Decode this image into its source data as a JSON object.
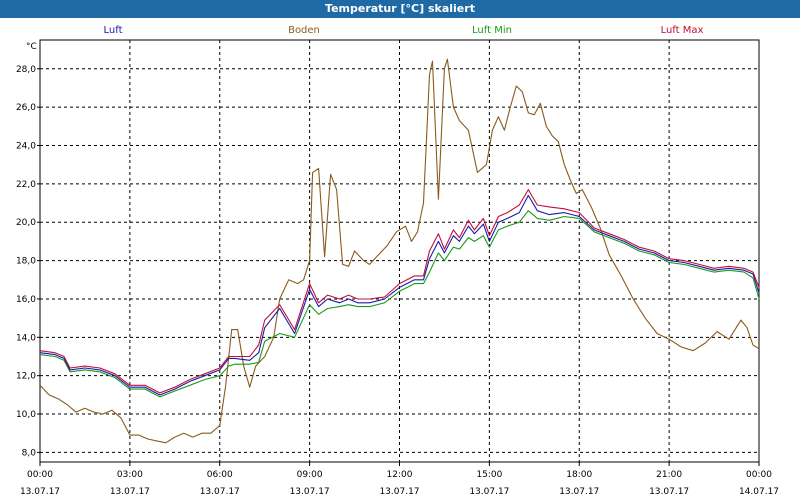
{
  "window": {
    "title": "Temperatur [°C] skaliert"
  },
  "chart_data": {
    "type": "line",
    "title": "Temperatur [°C] skaliert",
    "ylabel": "°C",
    "ylim": [
      7.5,
      29.5
    ],
    "yticks": [
      "8,0",
      "10,0",
      "12,0",
      "14,0",
      "16,0",
      "18,0",
      "20,0",
      "22,0",
      "24,0",
      "26,0",
      "28,0"
    ],
    "ytick_values": [
      8,
      10,
      12,
      14,
      16,
      18,
      20,
      22,
      24,
      26,
      28
    ],
    "xlim": [
      0,
      24
    ],
    "xtick_hours": [
      0,
      3,
      6,
      9,
      12,
      15,
      18,
      21,
      24
    ],
    "xtick_times": [
      "00:00",
      "03:00",
      "06:00",
      "09:00",
      "12:00",
      "15:00",
      "18:00",
      "21:00",
      "00:00"
    ],
    "xtick_dates": [
      "13.07.17",
      "13.07.17",
      "13.07.17",
      "13.07.17",
      "13.07.17",
      "13.07.17",
      "13.07.17",
      "13.07.17",
      "14.07.17"
    ],
    "grid": true,
    "series": [
      {
        "name": "Luft",
        "color": "#1a1aa8",
        "x": [
          0,
          0.5,
          0.8,
          1,
          1.5,
          2,
          2.5,
          3,
          3.5,
          4,
          4.5,
          5,
          5.5,
          6,
          6.3,
          6.5,
          7,
          7.3,
          7.5,
          8,
          8.5,
          9,
          9.3,
          9.6,
          10,
          10.3,
          10.6,
          11,
          11.5,
          12,
          12.5,
          12.8,
          13,
          13.3,
          13.5,
          13.8,
          14,
          14.3,
          14.5,
          14.8,
          15,
          15.3,
          15.6,
          16,
          16.3,
          16.6,
          17,
          17.5,
          18,
          18.5,
          19,
          19.5,
          20,
          20.5,
          21,
          21.5,
          22,
          22.5,
          23,
          23.5,
          23.8,
          24
        ],
        "y": [
          13.2,
          13.1,
          12.9,
          12.3,
          12.4,
          12.3,
          12.0,
          11.4,
          11.4,
          11.0,
          11.3,
          11.7,
          12.0,
          12.3,
          12.9,
          12.9,
          12.8,
          13.2,
          14.5,
          15.5,
          14.2,
          16.5,
          15.6,
          16.0,
          15.8,
          16.0,
          15.8,
          15.8,
          16.0,
          16.6,
          17.0,
          17.0,
          18.1,
          19.0,
          18.4,
          19.3,
          19.0,
          19.8,
          19.4,
          19.9,
          19.0,
          20.0,
          20.2,
          20.5,
          21.4,
          20.6,
          20.4,
          20.5,
          20.3,
          19.6,
          19.3,
          19.0,
          18.6,
          18.4,
          18.0,
          17.9,
          17.7,
          17.5,
          17.6,
          17.5,
          17.3,
          16.3
        ]
      },
      {
        "name": "Boden",
        "color": "#8b5a1e",
        "x": [
          0,
          0.3,
          0.6,
          0.9,
          1.2,
          1.5,
          1.8,
          2.1,
          2.4,
          2.7,
          3,
          3.3,
          3.6,
          3.9,
          4.2,
          4.5,
          4.8,
          5.1,
          5.4,
          5.7,
          6,
          6.2,
          6.4,
          6.6,
          6.8,
          7,
          7.2,
          7.5,
          7.8,
          8,
          8.3,
          8.6,
          8.8,
          9,
          9.1,
          9.3,
          9.5,
          9.7,
          9.9,
          10.1,
          10.3,
          10.5,
          10.8,
          11,
          11.3,
          11.6,
          11.9,
          12.2,
          12.4,
          12.6,
          12.8,
          13,
          13.1,
          13.3,
          13.5,
          13.6,
          13.8,
          14,
          14.3,
          14.6,
          14.9,
          15.1,
          15.3,
          15.5,
          15.7,
          15.9,
          16.1,
          16.3,
          16.5,
          16.7,
          16.9,
          17.1,
          17.3,
          17.5,
          17.7,
          17.9,
          18.1,
          18.4,
          18.7,
          19,
          19.4,
          19.8,
          20.2,
          20.6,
          21,
          21.4,
          21.8,
          22.2,
          22.6,
          23,
          23.4,
          23.6,
          23.8,
          24
        ],
        "y": [
          11.5,
          11.0,
          10.8,
          10.5,
          10.1,
          10.3,
          10.1,
          10.0,
          10.2,
          9.8,
          8.9,
          8.9,
          8.7,
          8.6,
          8.5,
          8.8,
          9.0,
          8.8,
          9.0,
          9.0,
          9.4,
          11.5,
          14.4,
          14.4,
          12.5,
          11.4,
          12.5,
          13.0,
          14.0,
          16.0,
          17.0,
          16.8,
          17.0,
          18.0,
          22.6,
          22.8,
          18.2,
          22.5,
          21.7,
          17.8,
          17.7,
          18.5,
          18.0,
          17.8,
          18.3,
          18.8,
          19.5,
          19.8,
          19.0,
          19.5,
          21.0,
          27.7,
          28.4,
          21.2,
          28.0,
          28.5,
          26.0,
          25.3,
          24.8,
          22.6,
          23.0,
          24.8,
          25.5,
          24.8,
          26.0,
          27.1,
          26.8,
          25.7,
          25.6,
          26.2,
          25.0,
          24.5,
          24.2,
          23.0,
          22.2,
          21.5,
          21.7,
          20.8,
          19.7,
          18.3,
          17.2,
          16.0,
          15.0,
          14.2,
          13.9,
          13.5,
          13.3,
          13.7,
          14.3,
          13.9,
          14.9,
          14.5,
          13.6,
          13.4
        ]
      },
      {
        "name": "Luft Min",
        "color": "#1a9a1a",
        "x": [
          0,
          0.5,
          0.8,
          1,
          1.5,
          2,
          2.5,
          3,
          3.5,
          4,
          4.5,
          5,
          5.5,
          6,
          6.3,
          6.5,
          7,
          7.3,
          7.5,
          8,
          8.5,
          9,
          9.3,
          9.6,
          10,
          10.3,
          10.6,
          11,
          11.5,
          12,
          12.5,
          12.8,
          13,
          13.3,
          13.5,
          13.8,
          14,
          14.3,
          14.5,
          14.8,
          15,
          15.3,
          15.6,
          16,
          16.3,
          16.6,
          17,
          17.5,
          18,
          18.5,
          19,
          19.5,
          20,
          20.5,
          21,
          21.5,
          22,
          22.5,
          23,
          23.5,
          23.8,
          24
        ],
        "y": [
          13.1,
          13.0,
          12.8,
          12.2,
          12.3,
          12.2,
          11.9,
          11.3,
          11.3,
          10.9,
          11.2,
          11.5,
          11.8,
          12.0,
          12.5,
          12.6,
          12.6,
          12.7,
          13.8,
          14.2,
          14.0,
          15.7,
          15.2,
          15.5,
          15.6,
          15.7,
          15.6,
          15.6,
          15.8,
          16.4,
          16.8,
          16.8,
          17.4,
          18.4,
          18.0,
          18.7,
          18.6,
          19.2,
          19.0,
          19.3,
          18.7,
          19.6,
          19.8,
          20.0,
          20.6,
          20.2,
          20.1,
          20.3,
          20.2,
          19.5,
          19.2,
          18.9,
          18.5,
          18.3,
          17.9,
          17.8,
          17.6,
          17.4,
          17.5,
          17.4,
          17.1,
          16.0
        ]
      },
      {
        "name": "Luft Max",
        "color": "#c0103a",
        "x": [
          0,
          0.5,
          0.8,
          1,
          1.5,
          2,
          2.5,
          3,
          3.5,
          4,
          4.5,
          5,
          5.5,
          6,
          6.3,
          6.5,
          7,
          7.3,
          7.5,
          8,
          8.5,
          9,
          9.3,
          9.6,
          10,
          10.3,
          10.6,
          11,
          11.5,
          12,
          12.5,
          12.8,
          13,
          13.3,
          13.5,
          13.8,
          14,
          14.3,
          14.5,
          14.8,
          15,
          15.3,
          15.6,
          16,
          16.3,
          16.6,
          17,
          17.5,
          18,
          18.5,
          19,
          19.5,
          20,
          20.5,
          21,
          21.5,
          22,
          22.5,
          23,
          23.5,
          23.8,
          24
        ],
        "y": [
          13.3,
          13.2,
          13.0,
          12.4,
          12.5,
          12.4,
          12.1,
          11.5,
          11.5,
          11.1,
          11.4,
          11.8,
          12.1,
          12.4,
          13.0,
          13.0,
          13.0,
          13.6,
          14.9,
          15.7,
          14.4,
          16.8,
          15.8,
          16.2,
          16.0,
          16.2,
          16.0,
          16.0,
          16.1,
          16.8,
          17.2,
          17.2,
          18.5,
          19.4,
          18.6,
          19.6,
          19.2,
          20.1,
          19.6,
          20.2,
          19.3,
          20.3,
          20.5,
          20.9,
          21.7,
          20.9,
          20.8,
          20.7,
          20.5,
          19.7,
          19.4,
          19.1,
          18.7,
          18.5,
          18.1,
          18.0,
          17.8,
          17.6,
          17.7,
          17.6,
          17.4,
          16.6
        ]
      }
    ]
  }
}
